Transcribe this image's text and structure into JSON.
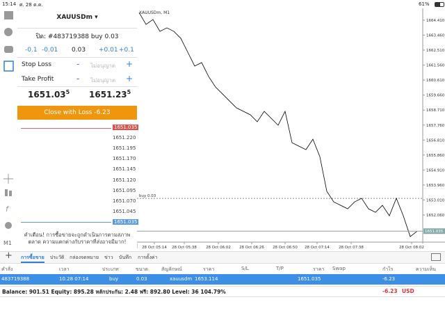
{
  "status_bar": {
    "time": "15:14",
    "date": "ศ. 28 ต.ค.",
    "battery": "61%"
  },
  "toolbar": {
    "timeframe": "M1"
  },
  "order_panel": {
    "symbol": "XAUUSDm ▾",
    "close_title": "ปิด: #483719388 buy 0.03",
    "volume_steps": [
      "-0.1",
      "-0.01",
      "0.03",
      "+0.01",
      "+0.1"
    ],
    "stop_loss": {
      "label": "Stop Loss",
      "minus": "-",
      "value": "ไม่อนุญาต",
      "plus": "+"
    },
    "take_profit": {
      "label": "Take Profit",
      "minus": "-",
      "value": "ไม่อนุญาต",
      "plus": "+"
    },
    "bid": {
      "main": "1651.03",
      "pip": "5"
    },
    "ask": {
      "main": "1651.23",
      "pip": "5"
    },
    "close_button": "Close with Loss -6.23",
    "ladder": [
      "1651.035",
      "1651.220",
      "1651.195",
      "1651.170",
      "1651.145",
      "1651.120",
      "1651.095",
      "1651.070",
      "1651.045",
      "1651.035"
    ],
    "warning": "คำเตือน! การซื้อขายจะถูกดำเนินการตามสภาพตลาด ความแตกต่างกับราคาที่ส่งอาจมีมาก!"
  },
  "chart": {
    "type": "line",
    "title": "XAUUSDm, M1",
    "color": "#000000",
    "values": [
      1664.89,
      1664.14,
      1664.45,
      1663.7,
      1663.92,
      1663.7,
      1663.26,
      1662.38,
      1661.5,
      1661.72,
      1660.84,
      1660.17,
      1659.73,
      1659.29,
      1658.85,
      1658.63,
      1658.41,
      1657.97,
      1658.63,
      1658.19,
      1657.75,
      1658.63,
      1656.64,
      1656.42,
      1656.2,
      1656.86,
      1655.76,
      1653.56,
      1652.89,
      1652.67,
      1652.45,
      1652.89,
      1653.12,
      1652.45,
      1652.23,
      1652.67,
      1652.01,
      1653.12,
      1652.01,
      1650.69,
      1651.04
    ],
    "ylim": [
      1650.34,
      1665.07
    ],
    "yticks": [
      {
        "value": 1664.41,
        "label": "1664.410"
      },
      {
        "value": 1663.46,
        "label": "1663.460"
      },
      {
        "value": 1662.51,
        "label": "1662.510"
      },
      {
        "value": 1661.56,
        "label": "1661.560"
      },
      {
        "value": 1660.61,
        "label": "1660.610"
      },
      {
        "value": 1659.66,
        "label": "1659.660"
      },
      {
        "value": 1658.71,
        "label": "1658.710"
      },
      {
        "value": 1657.76,
        "label": "1657.760"
      },
      {
        "value": 1656.81,
        "label": "1656.810"
      },
      {
        "value": 1655.86,
        "label": "1655.860"
      },
      {
        "value": 1654.91,
        "label": "1654.910"
      },
      {
        "value": 1653.96,
        "label": "1653.960"
      },
      {
        "value": 1653.01,
        "label": "1653.010"
      },
      {
        "value": 1652.06,
        "label": "1652.060"
      }
    ],
    "xticks": [
      "28 Oct 05:14",
      "28 Oct 05:38",
      "28 Oct 06:02",
      "28 Oct 06:26",
      "28 Oct 06:50",
      "28 Oct 07:14",
      "28 Oct 07:38",
      "28 Oct 08:02"
    ],
    "current_price": 1651.035,
    "order_line": {
      "label": "buy 0.03",
      "value": 1653.114
    }
  },
  "tabs": [
    "การซื้อขาย",
    "ประวัติ",
    "กล่องจดหมาย",
    "ข่าว",
    "บันทึก",
    "การตั้งค่า"
  ],
  "table": {
    "headers": [
      "คำสั่ง",
      "เวลา",
      "ประเภท",
      "ขนาด",
      "สัญลักษณ์",
      "ราคา",
      "S/L",
      "T/P",
      "ราคา",
      "Swap",
      "กำไร",
      "ความเห็น"
    ],
    "rows": [
      {
        "order": "483719388",
        "time": "10.28 07:14",
        "type": "buy",
        "size": "0.03",
        "symbol": "xauusdm",
        "price": "1653.114",
        "current_price": "1651.035",
        "profit": "-6.23"
      }
    ]
  },
  "footer": {
    "summary": "Balance: 901.51 Equity: 895.28 หลักประกัน: 2.48 ฟรี: 892.80 Level: 36 104.79%",
    "profit": "-6.23",
    "currency": "USD"
  }
}
